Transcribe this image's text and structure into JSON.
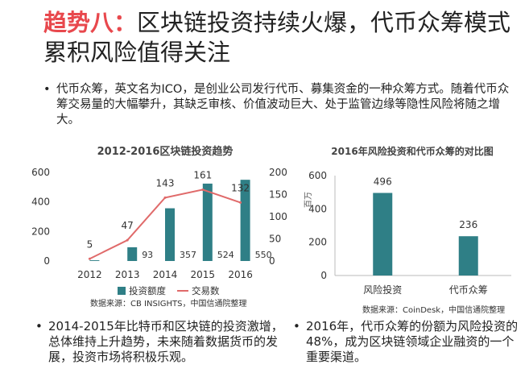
{
  "title": {
    "highlight": "趋势八：",
    "rest": "区块链投资持续火爆，代币众筹模式累积风险值得关注"
  },
  "bullets": {
    "top": "代币众筹，英文名为ICO，是创业公司发行代币、募集资金的一种众筹方式。随着代币众筹交易量的大幅攀升，其缺乏审核、价值波动巨大、处于监管边缘等隐性风险将随之增大。",
    "bottom_left": "2014-2015年比特币和区块链的投资激增，总体维持上升趋势，未来随着数据货币的发展，投资市场将积极乐观。",
    "bottom_right": "2016年，代币众筹的份额为风险投资的48%，成为区块链领域企业融资的一个重要渠道。"
  },
  "chart_data": [
    {
      "type": "bar+line",
      "title": "2012-2016区块链投资趋势",
      "categories": [
        "2012",
        "2013",
        "2014",
        "2015",
        "2016"
      ],
      "series": [
        {
          "name": "投资额度",
          "type": "bar",
          "axis": "left",
          "values": [
            5,
            93,
            357,
            524,
            550
          ],
          "color": "#2f7f86"
        },
        {
          "name": "交易数",
          "type": "line",
          "axis": "right",
          "values": [
            5,
            47,
            143,
            161,
            132
          ],
          "color": "#e06a6a"
        }
      ],
      "bar_labels": [
        "",
        "93",
        "357",
        "524",
        "550"
      ],
      "line_labels": [
        "5",
        "47",
        "143",
        "161",
        "132"
      ],
      "y_left": {
        "ticks": [
          "0",
          "200",
          "400",
          "600"
        ],
        "range": [
          0,
          600
        ]
      },
      "y_right": {
        "ticks": [
          "0",
          "50",
          "100",
          "150",
          "200"
        ],
        "range": [
          0,
          200
        ]
      },
      "legend_position": "bottom",
      "source": "数据来源：CB INSIGHTS，中国信通院整理"
    },
    {
      "type": "bar",
      "title": "2016年风险投资和代币众筹的对比图",
      "ylabel": "百万",
      "categories": [
        "风险投资",
        "代币众筹"
      ],
      "values": [
        496,
        236
      ],
      "y_ticks": [
        "0",
        "200",
        "400",
        "600"
      ],
      "ylim": [
        0,
        600
      ],
      "color": "#2f7f86",
      "source": "数据来源：CoinDesk，中国信通院整理"
    }
  ]
}
